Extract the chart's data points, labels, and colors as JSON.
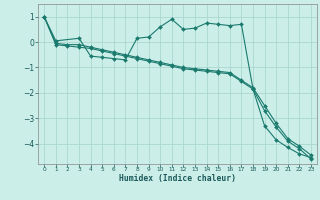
{
  "xlabel": "Humidex (Indice chaleur)",
  "background_color": "#cceee8",
  "grid_color": "#aad8d0",
  "line_color": "#1a7a6e",
  "xlim": [
    -0.5,
    23.5
  ],
  "ylim": [
    -4.8,
    1.5
  ],
  "yticks": [
    -4,
    -3,
    -2,
    -1,
    0,
    1
  ],
  "xticks": [
    0,
    1,
    2,
    3,
    4,
    5,
    6,
    7,
    8,
    9,
    10,
    11,
    12,
    13,
    14,
    15,
    16,
    17,
    18,
    19,
    20,
    21,
    22,
    23
  ],
  "series1_x": [
    0,
    1,
    3,
    4,
    5,
    6,
    7,
    8,
    9,
    10,
    11,
    12,
    13,
    14,
    15,
    16,
    17,
    18,
    19,
    20,
    21,
    22,
    23
  ],
  "series1_y": [
    1.0,
    0.05,
    0.15,
    -0.55,
    -0.6,
    -0.65,
    -0.7,
    0.15,
    0.2,
    0.6,
    0.9,
    0.5,
    0.55,
    0.75,
    0.7,
    0.65,
    0.7,
    -1.85,
    -3.3,
    -3.85,
    -4.15,
    -4.4,
    -4.55
  ],
  "series2_x": [
    0,
    1,
    2,
    3,
    4,
    5,
    6,
    7,
    8,
    9,
    10,
    11,
    12,
    13,
    14,
    15,
    16,
    17,
    18,
    19,
    20,
    21,
    22,
    23
  ],
  "series2_y": [
    1.0,
    -0.05,
    -0.1,
    -0.1,
    -0.2,
    -0.3,
    -0.4,
    -0.5,
    -0.6,
    -0.7,
    -0.8,
    -0.9,
    -1.0,
    -1.05,
    -1.1,
    -1.15,
    -1.2,
    -1.5,
    -1.8,
    -2.5,
    -3.2,
    -3.8,
    -4.1,
    -4.45
  ],
  "series3_x": [
    0,
    1,
    2,
    3,
    4,
    5,
    6,
    7,
    8,
    9,
    10,
    11,
    12,
    13,
    14,
    15,
    16,
    17,
    18,
    19,
    20,
    21,
    22,
    23
  ],
  "series3_y": [
    1.0,
    -0.1,
    -0.15,
    -0.2,
    -0.25,
    -0.35,
    -0.45,
    -0.55,
    -0.65,
    -0.75,
    -0.85,
    -0.95,
    -1.05,
    -1.1,
    -1.15,
    -1.2,
    -1.25,
    -1.55,
    -1.85,
    -2.7,
    -3.35,
    -3.9,
    -4.2,
    -4.6
  ]
}
